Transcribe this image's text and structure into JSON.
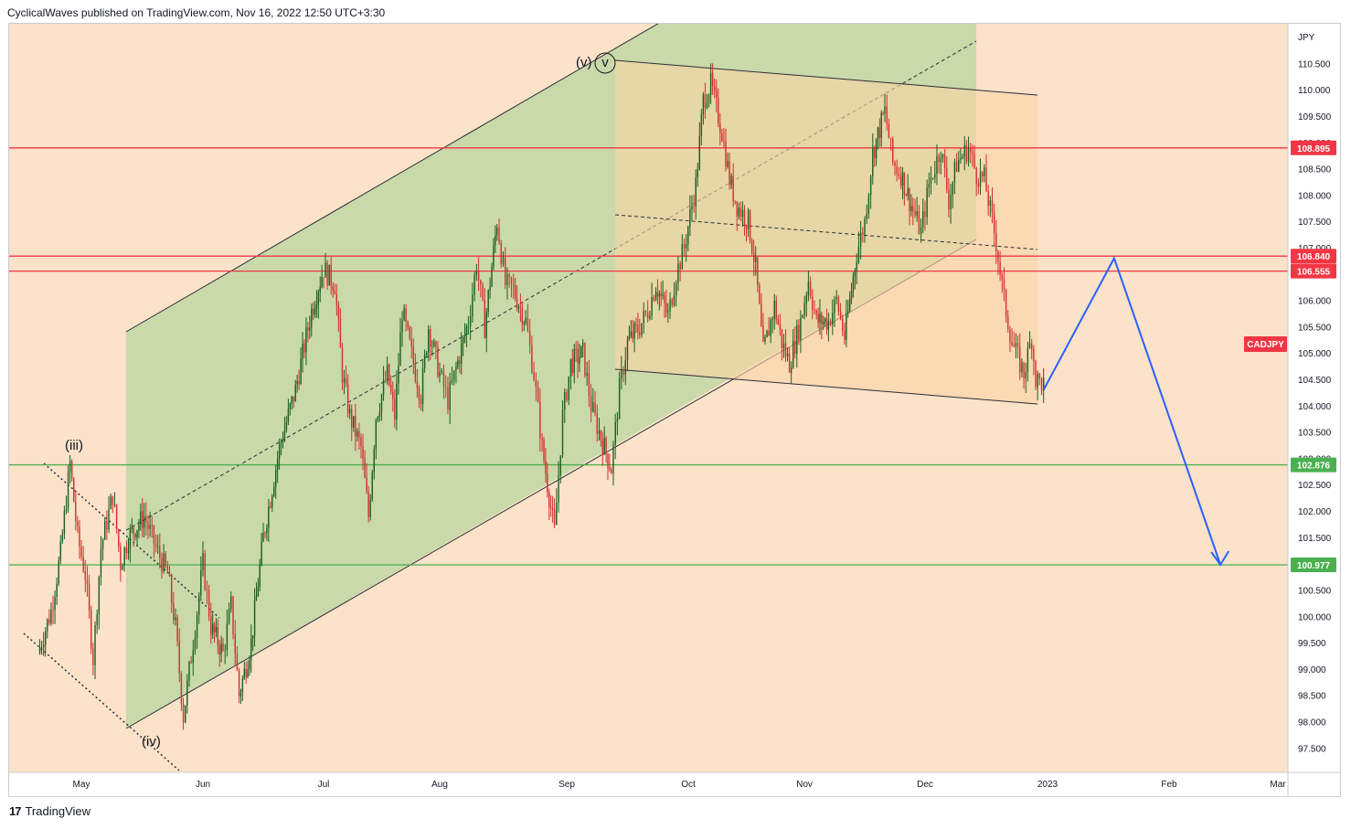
{
  "header": {
    "text": "CyclicalWaves published on TradingView.com, Nov 16, 2022 12:50 UTC+3:30"
  },
  "footer": {
    "brand": "TradingView",
    "logo_icon": "tradingview-logo-icon"
  },
  "chart_data": {
    "type": "candlestick",
    "symbol_label": "CADJPY",
    "currency_label": "JPY",
    "x_ticks": [
      "May",
      "Jun",
      "Jul",
      "Aug",
      "Sep",
      "Oct",
      "Nov",
      "Dec",
      "2023",
      "Feb",
      "Mar"
    ],
    "y_ticks": [
      "97.500",
      "98.000",
      "98.500",
      "99.000",
      "99.500",
      "100.000",
      "100.500",
      "101.000",
      "101.500",
      "102.000",
      "102.500",
      "103.000",
      "103.500",
      "104.000",
      "104.500",
      "105.000",
      "105.500",
      "106.000",
      "106.500",
      "107.000",
      "107.500",
      "108.000",
      "108.500",
      "109.000",
      "109.500",
      "110.000",
      "110.500"
    ],
    "ylim": [
      97.2,
      111.4
    ],
    "horizontal_levels": [
      {
        "label": "108.895",
        "value": 108.895,
        "color": "#f23645"
      },
      {
        "label": "106.840",
        "value": 106.84,
        "color": "#f23645"
      },
      {
        "label": "106.555",
        "value": 106.555,
        "color": "#f23645"
      },
      {
        "label": "102.876",
        "value": 102.876,
        "color": "#4caf50"
      },
      {
        "label": "100.977",
        "value": 100.977,
        "color": "#4caf50"
      }
    ],
    "wave_labels": [
      "(iii)",
      "(iv)",
      "(v)",
      "v"
    ],
    "price_path": [
      [
        "2022-04-08",
        99.3
      ],
      [
        "2022-04-15",
        100.1
      ],
      [
        "2022-04-20",
        101.2
      ],
      [
        "2022-04-25",
        102.9
      ],
      [
        "2022-04-29",
        101.5
      ],
      [
        "2022-05-02",
        100.8
      ],
      [
        "2022-05-04",
        99.2
      ],
      [
        "2022-05-06",
        101.3
      ],
      [
        "2022-05-09",
        102.3
      ],
      [
        "2022-05-11",
        101.0
      ],
      [
        "2022-05-13",
        101.5
      ],
      [
        "2022-05-17",
        101.9
      ],
      [
        "2022-05-20",
        101.3
      ],
      [
        "2022-05-23",
        100.8
      ],
      [
        "2022-05-25",
        99.8
      ],
      [
        "2022-05-27",
        98.1
      ],
      [
        "2022-05-30",
        99.8
      ],
      [
        "2022-06-01",
        101.0
      ],
      [
        "2022-06-03",
        99.8
      ],
      [
        "2022-06-06",
        99.3
      ],
      [
        "2022-06-08",
        100.2
      ],
      [
        "2022-06-10",
        98.5
      ],
      [
        "2022-06-13",
        99.5
      ],
      [
        "2022-06-16",
        101.5
      ],
      [
        "2022-06-20",
        103.2
      ],
      [
        "2022-06-24",
        104.3
      ],
      [
        "2022-06-28",
        105.8
      ],
      [
        "2022-07-01",
        106.6
      ],
      [
        "2022-07-04",
        106.3
      ],
      [
        "2022-07-06",
        104.6
      ],
      [
        "2022-07-08",
        103.8
      ],
      [
        "2022-07-11",
        103.2
      ],
      [
        "2022-07-13",
        101.9
      ],
      [
        "2022-07-15",
        103.8
      ],
      [
        "2022-07-18",
        104.6
      ],
      [
        "2022-07-20",
        103.8
      ],
      [
        "2022-07-22",
        105.8
      ],
      [
        "2022-07-25",
        104.8
      ],
      [
        "2022-07-27",
        104.2
      ],
      [
        "2022-07-29",
        105.5
      ],
      [
        "2022-08-01",
        104.6
      ],
      [
        "2022-08-03",
        104.1
      ],
      [
        "2022-08-05",
        104.7
      ],
      [
        "2022-08-08",
        105.6
      ],
      [
        "2022-08-10",
        106.7
      ],
      [
        "2022-08-12",
        105.5
      ],
      [
        "2022-08-15",
        107.5
      ],
      [
        "2022-08-17",
        106.3
      ],
      [
        "2022-08-19",
        106.2
      ],
      [
        "2022-08-22",
        105.6
      ],
      [
        "2022-08-24",
        104.6
      ],
      [
        "2022-08-26",
        103.2
      ],
      [
        "2022-08-29",
        101.6
      ],
      [
        "2022-08-31",
        103.8
      ],
      [
        "2022-09-02",
        104.8
      ],
      [
        "2022-09-05",
        105.0
      ],
      [
        "2022-09-07",
        104.0
      ],
      [
        "2022-09-09",
        103.5
      ],
      [
        "2022-09-12",
        102.8
      ],
      [
        "2022-09-14",
        104.3
      ],
      [
        "2022-09-16",
        105.2
      ],
      [
        "2022-09-19",
        105.5
      ],
      [
        "2022-09-21",
        105.8
      ],
      [
        "2022-09-23",
        106.3
      ],
      [
        "2022-09-26",
        105.7
      ],
      [
        "2022-09-28",
        106.5
      ],
      [
        "2022-09-30",
        107.0
      ],
      [
        "2022-10-03",
        108.2
      ],
      [
        "2022-10-05",
        109.8
      ],
      [
        "2022-10-07",
        110.1
      ],
      [
        "2022-10-10",
        109.2
      ],
      [
        "2022-10-12",
        108.3
      ],
      [
        "2022-10-14",
        107.8
      ],
      [
        "2022-10-17",
        107.5
      ],
      [
        "2022-10-19",
        106.6
      ],
      [
        "2022-10-21",
        105.0
      ],
      [
        "2022-10-24",
        105.9
      ],
      [
        "2022-10-26",
        105.2
      ],
      [
        "2022-10-28",
        104.8
      ],
      [
        "2022-10-31",
        105.6
      ],
      [
        "2022-11-02",
        106.4
      ],
      [
        "2022-11-04",
        105.6
      ],
      [
        "2022-11-07",
        105.6
      ],
      [
        "2022-11-09",
        106.0
      ],
      [
        "2022-11-11",
        105.3
      ],
      [
        "2022-11-14",
        106.9
      ],
      [
        "2022-11-16",
        107.5
      ],
      [
        "2022-11-18",
        108.8
      ],
      [
        "2022-11-21",
        109.6
      ],
      [
        "2022-11-23",
        108.6
      ],
      [
        "2022-11-25",
        108.4
      ],
      [
        "2022-11-28",
        107.7
      ],
      [
        "2022-11-30",
        107.3
      ],
      [
        "2022-12-02",
        108.2
      ],
      [
        "2022-12-05",
        108.9
      ],
      [
        "2022-12-07",
        107.9
      ],
      [
        "2022-12-09",
        108.6
      ],
      [
        "2022-12-12",
        108.9
      ],
      [
        "2022-12-14",
        108.4
      ],
      [
        "2022-12-16",
        108.3
      ],
      [
        "2022-12-19",
        107.1
      ],
      [
        "2022-12-21",
        106.0
      ],
      [
        "2022-12-23",
        105.2
      ],
      [
        "2022-12-26",
        104.6
      ],
      [
        "2022-12-28",
        105.3
      ],
      [
        "2022-12-29",
        104.5
      ],
      [
        "2022-12-31",
        104.4
      ]
    ],
    "projection_path": [
      [
        "2022-12-31",
        104.3
      ],
      [
        "2023-01-18",
        106.8
      ],
      [
        "2023-02-14",
        100.977
      ]
    ]
  }
}
